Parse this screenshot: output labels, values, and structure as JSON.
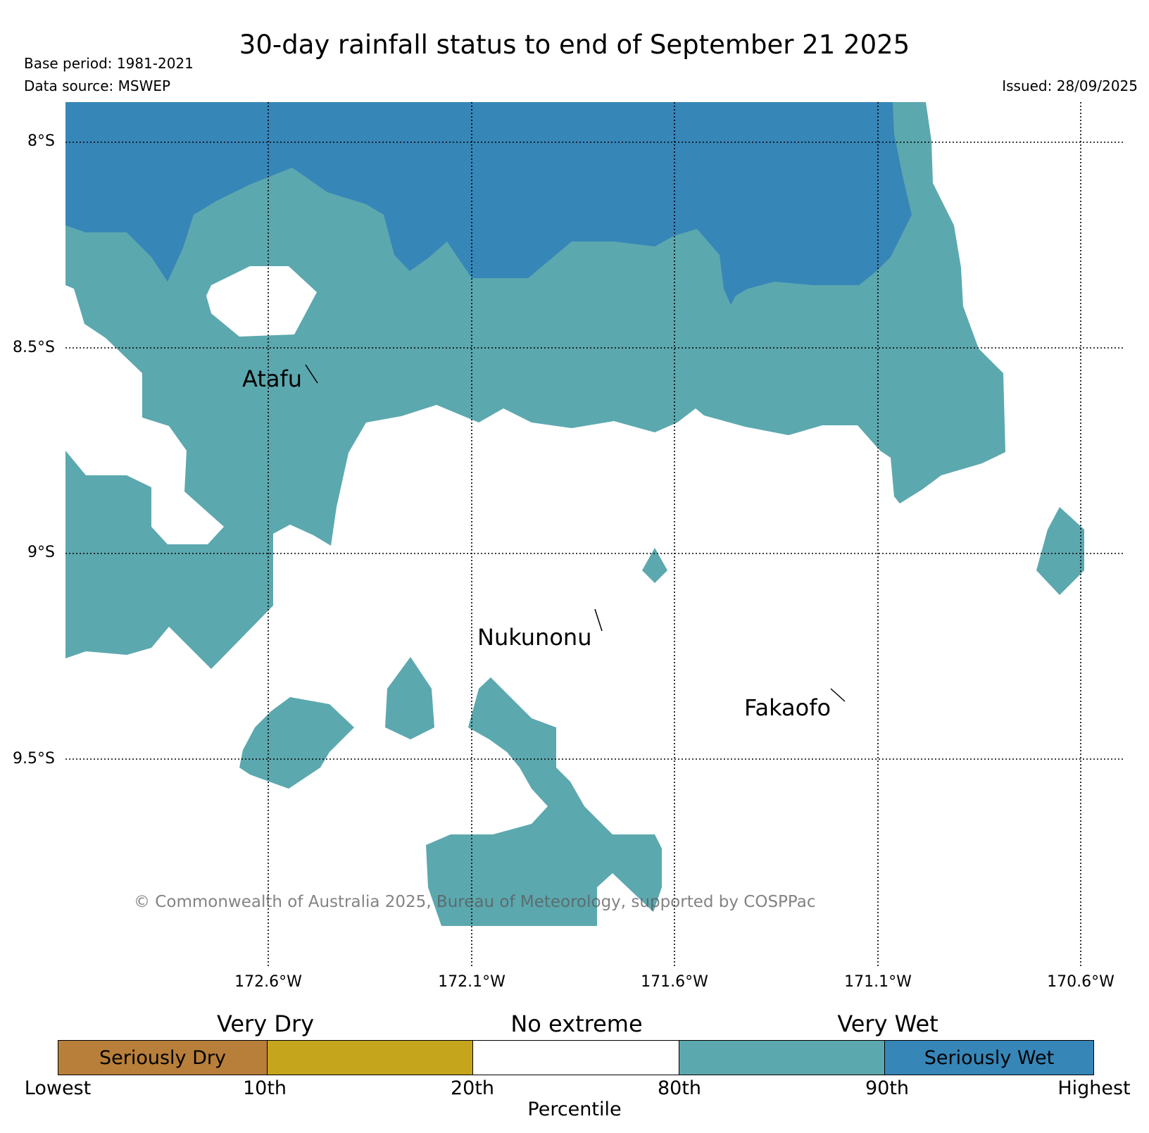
{
  "title": "30-day rainfall status to end of September 21 2025",
  "base_period": "Base period: 1981-2021",
  "data_source": "Data source: MSWEP",
  "issued": "Issued: 28/09/2025",
  "latitude_labels": [
    "8°S",
    "8.5°S",
    "9°S",
    "9.5°S"
  ],
  "longitude_labels": [
    "172.6°W",
    "172.1°W",
    "171.6°W",
    "171.1°W",
    "170.6°W"
  ],
  "places": {
    "atafu": "Atafu",
    "nukunonu": "Nukunonu",
    "fakaofo": "Fakaofo"
  },
  "copyright": "© Commonwealth of Australia 2025, Bureau of Meteorology, supported by COSPPac",
  "legend": {
    "categories": {
      "very_dry": "Very Dry",
      "no_extreme": "No extreme",
      "very_wet": "Very Wet"
    },
    "bins": [
      {
        "label": "Seriously Dry",
        "color": "#b87f3a"
      },
      {
        "label": "",
        "color": "#c4a51c"
      },
      {
        "label": "",
        "color": "#ffffff"
      },
      {
        "label": "",
        "color": "#5ca8af"
      },
      {
        "label": "Seriously Wet",
        "color": "#3686b8"
      }
    ],
    "ticks": [
      "Lowest",
      "10th",
      "20th",
      "80th",
      "90th",
      "Highest"
    ],
    "axis_title": "Percentile"
  },
  "colors": {
    "very_wet": "#5ca8af",
    "seriously_wet": "#3686b8"
  }
}
